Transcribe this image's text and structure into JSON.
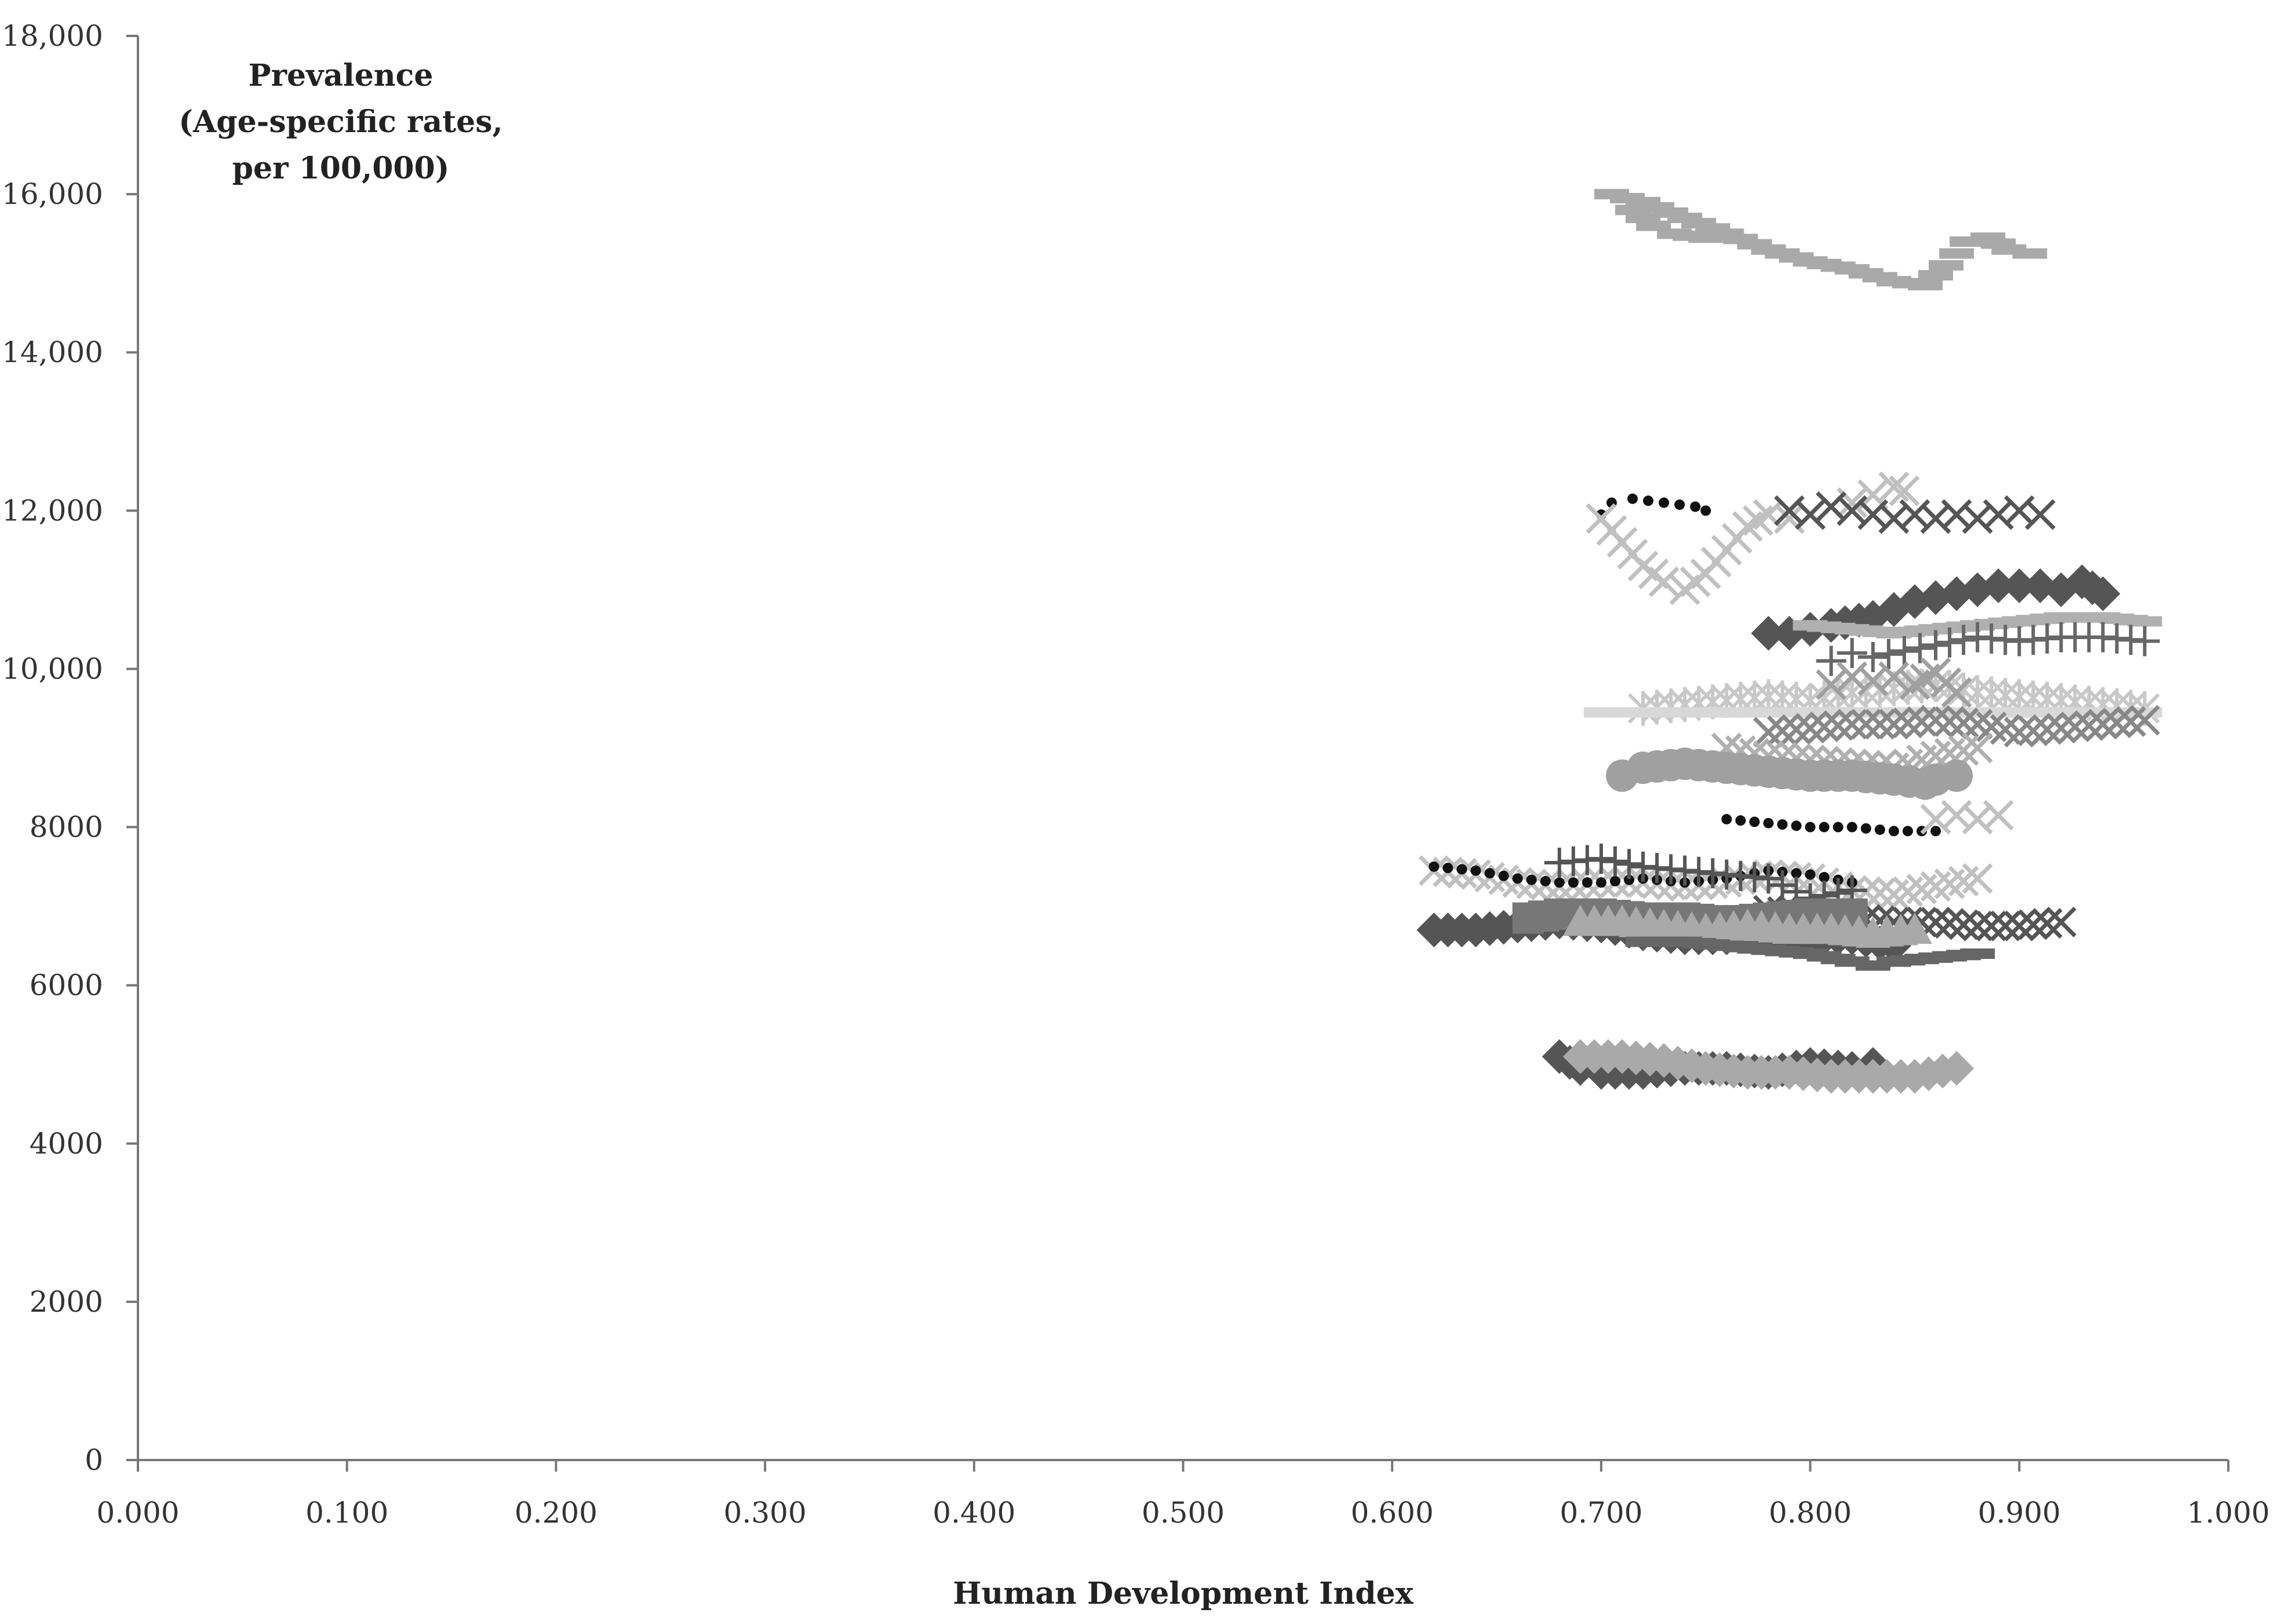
{
  "chart_data": {
    "type": "scatter",
    "title": "",
    "annotation": [
      "Prevalence",
      "(Age-specific rates,",
      "per 100,000)"
    ],
    "xlabel": "Human Development Index",
    "ylabel": "",
    "xlim": [
      0,
      1
    ],
    "ylim": [
      0,
      18000
    ],
    "x_ticks": [
      "0.000",
      "0.100",
      "0.200",
      "0.300",
      "0.400",
      "0.500",
      "0.600",
      "0.700",
      "0.800",
      "0.900",
      "1.000"
    ],
    "y_ticks": [
      "0",
      "2000",
      "4000",
      "6000",
      "8000",
      "10,000",
      "12,000",
      "14,000",
      "16,000",
      "18,000"
    ],
    "grid": false,
    "legend": "none",
    "series": [
      {
        "color": "#a9a9a9",
        "marker": "dash",
        "x": [
          0.705,
          0.72,
          0.74,
          0.76,
          0.78,
          0.8,
          0.82,
          0.84,
          0.855,
          0.865,
          0.875,
          0.885,
          0.895,
          0.905
        ],
        "y": [
          16000,
          15900,
          15700,
          15500,
          15300,
          15150,
          15050,
          14900,
          14850,
          15100,
          15400,
          15450,
          15300,
          15250
        ]
      },
      {
        "color": "#a9a9a9",
        "marker": "dash",
        "x": [
          0.715,
          0.725,
          0.735,
          0.75
        ],
        "y": [
          15800,
          15600,
          15500,
          15450
        ]
      },
      {
        "color": "#111111",
        "marker": "dot",
        "x": [
          0.7,
          0.705,
          0.715,
          0.73,
          0.745,
          0.75
        ],
        "y": [
          11950,
          12100,
          12150,
          12100,
          12050,
          12000
        ]
      },
      {
        "color": "#c0c0c0",
        "marker": "x",
        "x": [
          0.7,
          0.71,
          0.72,
          0.73,
          0.74,
          0.75,
          0.76,
          0.77,
          0.78,
          0.79,
          0.8,
          0.81,
          0.82,
          0.83,
          0.84,
          0.845
        ],
        "y": [
          11900,
          11600,
          11300,
          11100,
          11000,
          11200,
          11500,
          11800,
          11950,
          11900,
          11950,
          12050,
          12100,
          12200,
          12300,
          12250
        ]
      },
      {
        "color": "#555555",
        "marker": "x",
        "x": [
          0.79,
          0.8,
          0.81,
          0.82,
          0.83,
          0.84,
          0.85,
          0.86,
          0.87,
          0.88,
          0.89,
          0.9,
          0.91
        ],
        "y": [
          12000,
          11950,
          12050,
          12000,
          11950,
          11900,
          11950,
          11900,
          11950,
          11900,
          11950,
          12000,
          11950
        ]
      },
      {
        "color": "#555555",
        "marker": "diamond",
        "x": [
          0.78,
          0.79,
          0.8,
          0.81,
          0.83,
          0.84,
          0.85,
          0.86,
          0.87,
          0.88,
          0.89,
          0.9,
          0.91,
          0.92,
          0.93,
          0.94
        ],
        "y": [
          10450,
          10450,
          10500,
          10550,
          10650,
          10750,
          10850,
          10900,
          10950,
          11000,
          11050,
          11050,
          11050,
          11000,
          11100,
          10950
        ]
      },
      {
        "color": "#b0b0b0",
        "marker": "dash",
        "x": [
          0.8,
          0.82,
          0.84,
          0.86,
          0.88,
          0.9,
          0.92,
          0.94,
          0.96
        ],
        "y": [
          10550,
          10500,
          10450,
          10500,
          10550,
          10600,
          10650,
          10650,
          10600
        ]
      },
      {
        "color": "#666666",
        "marker": "plus",
        "x": [
          0.81,
          0.82,
          0.83,
          0.86,
          0.88,
          0.9,
          0.92,
          0.94,
          0.96
        ],
        "y": [
          10100,
          10200,
          10150,
          10300,
          10400,
          10350,
          10400,
          10400,
          10350
        ]
      },
      {
        "color": "#c8c8c8",
        "marker": "asterisk",
        "x": [
          0.72,
          0.74,
          0.76,
          0.78,
          0.8,
          0.82,
          0.84,
          0.86,
          0.88,
          0.9,
          0.92,
          0.94,
          0.96
        ],
        "y": [
          9500,
          9550,
          9600,
          9650,
          9600,
          9700,
          9750,
          9800,
          9700,
          9650,
          9600,
          9550,
          9500
        ]
      },
      {
        "color": "#a0a0a0",
        "marker": "x",
        "x": [
          0.81,
          0.82,
          0.83,
          0.84,
          0.85,
          0.86,
          0.87
        ],
        "y": [
          9800,
          9900,
          9850,
          9900,
          9800,
          9950,
          9700
        ]
      },
      {
        "color": "#d8d8d8",
        "marker": "dash",
        "x": [
          0.7,
          0.72,
          0.74,
          0.76,
          0.78,
          0.8,
          0.82,
          0.84,
          0.86,
          0.88,
          0.9,
          0.92,
          0.94,
          0.96
        ],
        "y": [
          9450,
          9450,
          9450,
          9450,
          9450,
          9450,
          9450,
          9450,
          9450,
          9450,
          9450,
          9450,
          9450,
          9450
        ]
      },
      {
        "color": "#888888",
        "marker": "x",
        "x": [
          0.78,
          0.8,
          0.82,
          0.84,
          0.86,
          0.88,
          0.9,
          0.92,
          0.94,
          0.96
        ],
        "y": [
          9200,
          9250,
          9300,
          9300,
          9350,
          9300,
          9200,
          9250,
          9300,
          9350
        ]
      },
      {
        "color": "#b0b0b0",
        "marker": "x",
        "x": [
          0.76,
          0.78,
          0.8,
          0.82,
          0.84,
          0.86,
          0.88
        ],
        "y": [
          9000,
          8900,
          8850,
          8800,
          8750,
          8900,
          9000
        ]
      },
      {
        "color": "#a0a0a0",
        "marker": "circle",
        "x": [
          0.71,
          0.72,
          0.74,
          0.76,
          0.78,
          0.8,
          0.82,
          0.84,
          0.855,
          0.86,
          0.87
        ],
        "y": [
          8650,
          8750,
          8800,
          8750,
          8700,
          8650,
          8650,
          8600,
          8550,
          8600,
          8650
        ]
      },
      {
        "color": "#111111",
        "marker": "dot",
        "x": [
          0.76,
          0.78,
          0.8,
          0.82,
          0.84,
          0.86
        ],
        "y": [
          8100,
          8050,
          8000,
          8000,
          7950,
          7950
        ]
      },
      {
        "color": "#c0c0c0",
        "marker": "x",
        "x": [
          0.86,
          0.87,
          0.88,
          0.89
        ],
        "y": [
          8100,
          8150,
          8100,
          8150
        ]
      },
      {
        "color": "#c0c0c0",
        "marker": "x",
        "x": [
          0.62,
          0.64,
          0.66,
          0.68,
          0.7,
          0.72,
          0.74,
          0.76,
          0.78,
          0.8,
          0.82,
          0.84,
          0.86,
          0.88
        ],
        "y": [
          7450,
          7400,
          7300,
          7250,
          7300,
          7300,
          7250,
          7300,
          7400,
          7350,
          7200,
          7150,
          7250,
          7350
        ]
      },
      {
        "color": "#111111",
        "marker": "dot",
        "x": [
          0.62,
          0.64,
          0.66,
          0.68,
          0.7,
          0.72,
          0.74,
          0.76,
          0.78,
          0.8,
          0.82
        ],
        "y": [
          7500,
          7450,
          7350,
          7300,
          7300,
          7350,
          7300,
          7350,
          7450,
          7400,
          7300
        ]
      },
      {
        "color": "#555555",
        "marker": "plus",
        "x": [
          0.68,
          0.7,
          0.72,
          0.74,
          0.76,
          0.78,
          0.8,
          0.82
        ],
        "y": [
          7550,
          7600,
          7500,
          7450,
          7400,
          7350,
          7100,
          7200
        ]
      },
      {
        "color": "#555555",
        "marker": "x",
        "x": [
          0.78,
          0.8,
          0.82,
          0.84,
          0.86,
          0.88,
          0.9,
          0.92
        ],
        "y": [
          6950,
          6900,
          6850,
          6800,
          6800,
          6750,
          6750,
          6800
        ]
      },
      {
        "color": "#555555",
        "marker": "diamond",
        "x": [
          0.62,
          0.64,
          0.66,
          0.68,
          0.7,
          0.72,
          0.74,
          0.76,
          0.78,
          0.8,
          0.82,
          0.84
        ],
        "y": [
          6700,
          6700,
          6750,
          6800,
          6750,
          6650,
          6600,
          6600,
          6650,
          6600,
          6600,
          6500
        ]
      },
      {
        "color": "#777777",
        "marker": "square",
        "x": [
          0.665,
          0.68,
          0.7,
          0.72,
          0.74,
          0.76,
          0.78,
          0.8,
          0.82
        ],
        "y": [
          6850,
          6900,
          6900,
          6850,
          6850,
          6800,
          6850,
          6900,
          6900
        ]
      },
      {
        "color": "#a9a9a9",
        "marker": "triangle",
        "x": [
          0.69,
          0.71,
          0.73,
          0.75,
          0.77,
          0.79,
          0.81,
          0.83,
          0.85
        ],
        "y": [
          6800,
          6800,
          6750,
          6700,
          6750,
          6700,
          6700,
          6650,
          6700
        ]
      },
      {
        "color": "#666666",
        "marker": "dash",
        "x": [
          0.72,
          0.74,
          0.76,
          0.78,
          0.8,
          0.82,
          0.83,
          0.84,
          0.86,
          0.88
        ],
        "y": [
          6550,
          6550,
          6500,
          6450,
          6400,
          6300,
          6250,
          6300,
          6350,
          6400
        ]
      },
      {
        "color": "#555555",
        "marker": "diamond",
        "x": [
          0.68,
          0.69,
          0.7,
          0.72,
          0.74,
          0.76,
          0.78,
          0.8,
          0.82,
          0.83
        ],
        "y": [
          5100,
          4950,
          4900,
          4900,
          4950,
          4950,
          4900,
          5000,
          4950,
          5000
        ]
      },
      {
        "color": "#a9a9a9",
        "marker": "diamond",
        "x": [
          0.69,
          0.71,
          0.73,
          0.75,
          0.77,
          0.79,
          0.81,
          0.83,
          0.85,
          0.87
        ],
        "y": [
          5100,
          5100,
          5050,
          4950,
          4900,
          4900,
          4850,
          4850,
          4850,
          4950
        ]
      }
    ]
  }
}
